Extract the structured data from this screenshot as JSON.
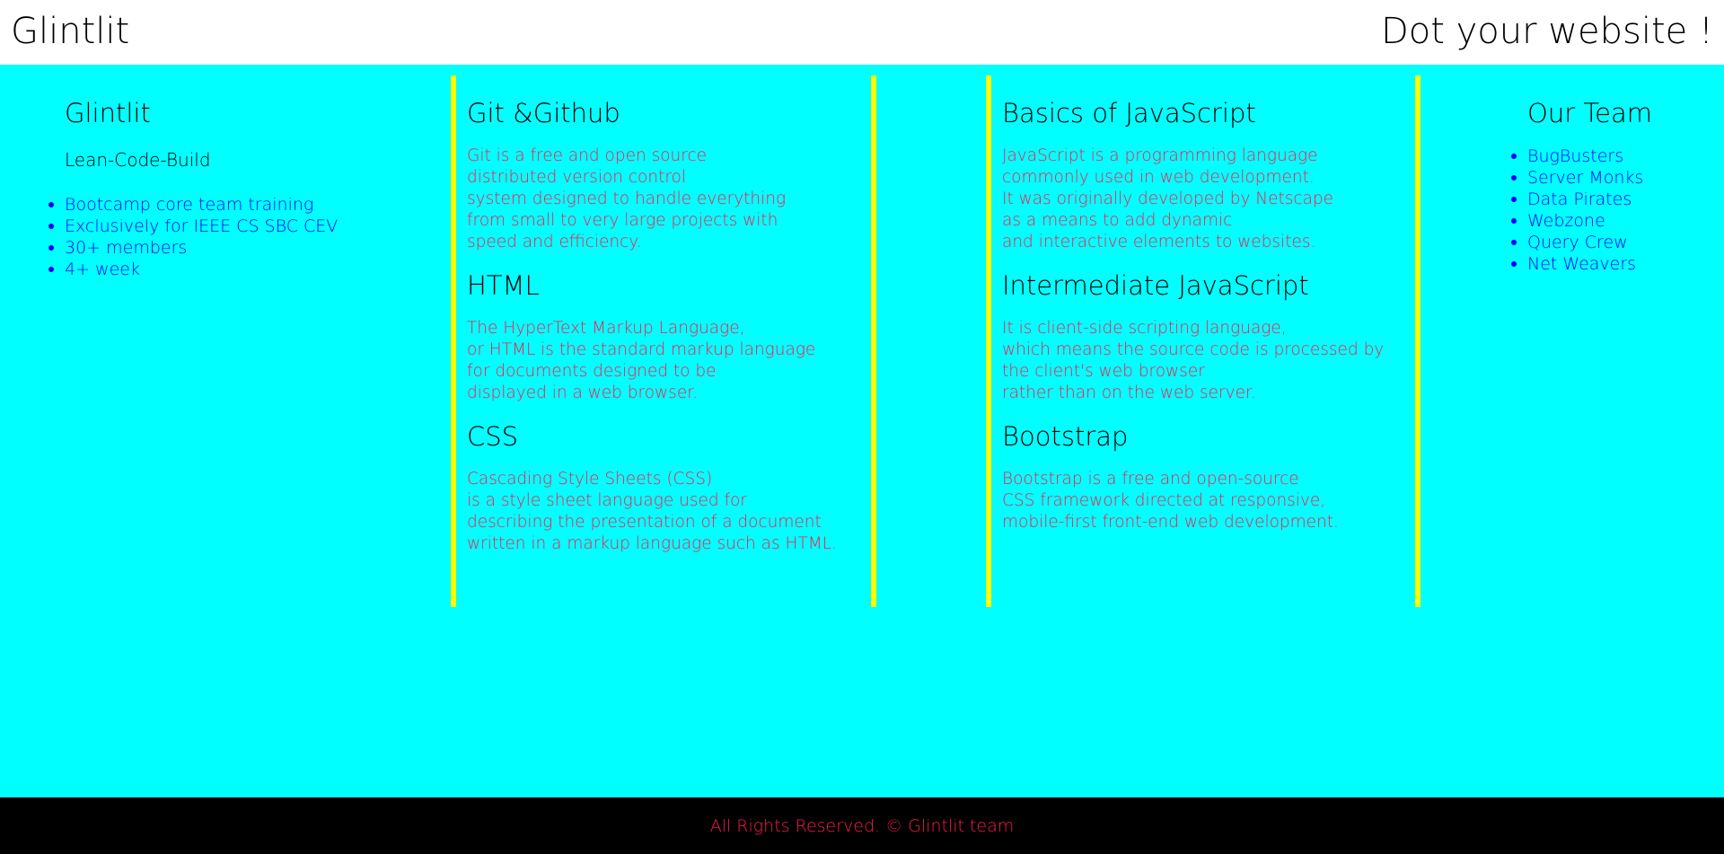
{
  "header": {
    "brand": "Glintlit",
    "tagline": "Dot your website !"
  },
  "about": {
    "title": "Glintlit",
    "subtitle": "Lean-Code-Build",
    "items": [
      "Bootcamp core team training",
      "Exclusively for IEEE CS SBC CEV",
      "30+ members",
      "4+ week"
    ]
  },
  "column_a": {
    "sections": [
      {
        "title": "Git &Github",
        "text": "Git is a free and open source\ndistributed version control\nsystem designed to handle everything\nfrom small to very large projects with\nspeed and efficiency."
      },
      {
        "title": "HTML",
        "text": "The HyperText Markup Language,\nor HTML is the standard markup language\nfor documents designed to be\ndisplayed in a web browser."
      },
      {
        "title": "CSS",
        "text": "Cascading Style Sheets (CSS)\nis a style sheet language used for\ndescribing the presentation of a document\nwritten in a markup language such as HTML."
      }
    ]
  },
  "column_b": {
    "sections": [
      {
        "title": "Basics of JavaScript",
        "text": "JavaScript is a programming language\ncommonly used in web development.\nIt was originally developed by Netscape\nas a means to add dynamic\nand interactive elements to websites."
      },
      {
        "title": "Intermediate JavaScript",
        "text": "It is client-side scripting language,\nwhich means the source code is processed by\nthe client's web browser\nrather than on the web server."
      },
      {
        "title": "Bootstrap",
        "text": "Bootstrap is a free and open-source\nCSS framework directed at responsive,\nmobile-first front-end web development."
      }
    ]
  },
  "team": {
    "title": "Our Team",
    "items": [
      "BugBusters",
      "Server Monks",
      "Data Pirates",
      "Webzone",
      "Query Crew",
      "Net Weavers"
    ]
  },
  "footer": {
    "text": "All Rights Reserved. © Glintlit team"
  },
  "colors": {
    "background": "#00ffff",
    "divider": "#ffff00",
    "text_accent": "#ff1a4d",
    "link": "#0000ff",
    "footer_bg": "#000000"
  }
}
